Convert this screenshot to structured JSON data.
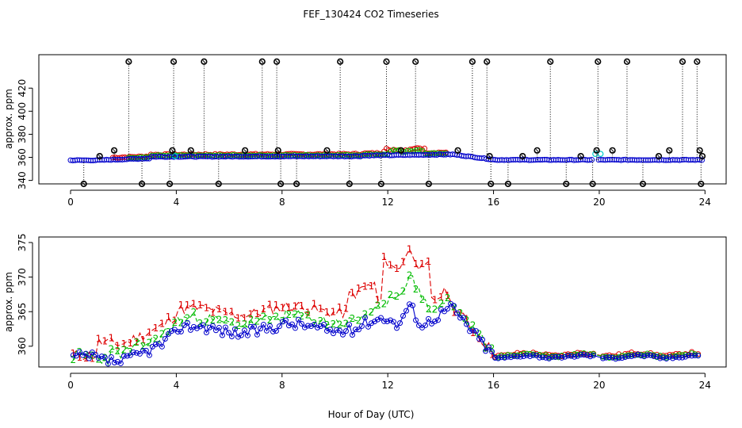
{
  "title": "FEF_130424  CO2 Timeseries",
  "xlabel": "Hour of Day (UTC)",
  "colors": {
    "axis": "#000000",
    "red": "#dd0000",
    "green": "#00bb00",
    "blue": "#0000cc",
    "cyan": "#00cccc",
    "black": "#000000"
  },
  "chart_data": [
    {
      "type": "scatter",
      "name": "top-panel",
      "ylabel": "approx. ppm",
      "xlim": [
        -1.2,
        24.8
      ],
      "ylim": [
        337,
        449
      ],
      "xticks": [
        0,
        4,
        8,
        12,
        16,
        20,
        24
      ],
      "xtick_labels": [
        "0",
        "4",
        "8",
        "12",
        "16",
        "20",
        "24"
      ],
      "yticks": [
        340,
        360,
        380,
        400,
        420
      ],
      "ytick_labels": [
        "340",
        "360",
        "380",
        "400",
        "420"
      ],
      "black_spikes": [
        [
          0.5,
          337
        ],
        [
          1.1,
          361
        ],
        [
          1.65,
          366
        ],
        [
          2.2,
          443
        ],
        [
          2.7,
          337
        ],
        [
          3.75,
          337
        ],
        [
          3.85,
          366
        ],
        [
          3.9,
          443
        ],
        [
          4.55,
          366
        ],
        [
          5.05,
          443
        ],
        [
          5.6,
          337
        ],
        [
          6.6,
          366
        ],
        [
          7.25,
          443
        ],
        [
          7.8,
          443
        ],
        [
          7.85,
          366
        ],
        [
          7.95,
          337
        ],
        [
          8.55,
          337
        ],
        [
          9.7,
          366
        ],
        [
          10.55,
          337
        ],
        [
          10.2,
          443
        ],
        [
          11.75,
          337
        ],
        [
          11.95,
          443
        ],
        [
          12.5,
          366
        ],
        [
          13.05,
          443
        ],
        [
          13.55,
          337
        ],
        [
          14.65,
          366
        ],
        [
          15.2,
          443
        ],
        [
          15.75,
          443
        ],
        [
          15.85,
          361
        ],
        [
          15.9,
          337
        ],
        [
          16.55,
          337
        ],
        [
          17.1,
          361
        ],
        [
          17.65,
          366
        ],
        [
          18.15,
          443
        ],
        [
          18.75,
          337
        ],
        [
          19.3,
          361
        ],
        [
          19.75,
          337
        ],
        [
          19.9,
          366
        ],
        [
          19.95,
          443
        ],
        [
          20.5,
          366
        ],
        [
          21.05,
          443
        ],
        [
          21.65,
          337
        ],
        [
          22.25,
          361
        ],
        [
          22.65,
          366
        ],
        [
          23.15,
          443
        ],
        [
          23.7,
          443
        ],
        [
          23.8,
          366
        ],
        [
          23.85,
          337
        ],
        [
          23.9,
          361
        ]
      ],
      "cyan_points": [
        [
          3.95,
          361
        ],
        [
          19.85,
          363
        ],
        [
          20.05,
          363
        ]
      ]
    },
    {
      "type": "line",
      "name": "bottom-panel",
      "ylabel": "approx. ppm",
      "xlim": [
        -1.2,
        24.8
      ],
      "ylim": [
        357,
        375.8
      ],
      "xticks": [
        0,
        4,
        8,
        12,
        16,
        20,
        24
      ],
      "xtick_labels": [
        "0",
        "4",
        "8",
        "12",
        "16",
        "20",
        "24"
      ],
      "yticks": [
        360,
        365,
        370,
        375
      ],
      "ytick_labels": [
        "360",
        "365",
        "370",
        "375"
      ],
      "series": [
        {
          "name": "1",
          "label": "1",
          "color": "red"
        },
        {
          "name": "2",
          "label": "2",
          "color": "green"
        },
        {
          "name": "3",
          "label": "3",
          "color": "blue"
        }
      ]
    }
  ]
}
